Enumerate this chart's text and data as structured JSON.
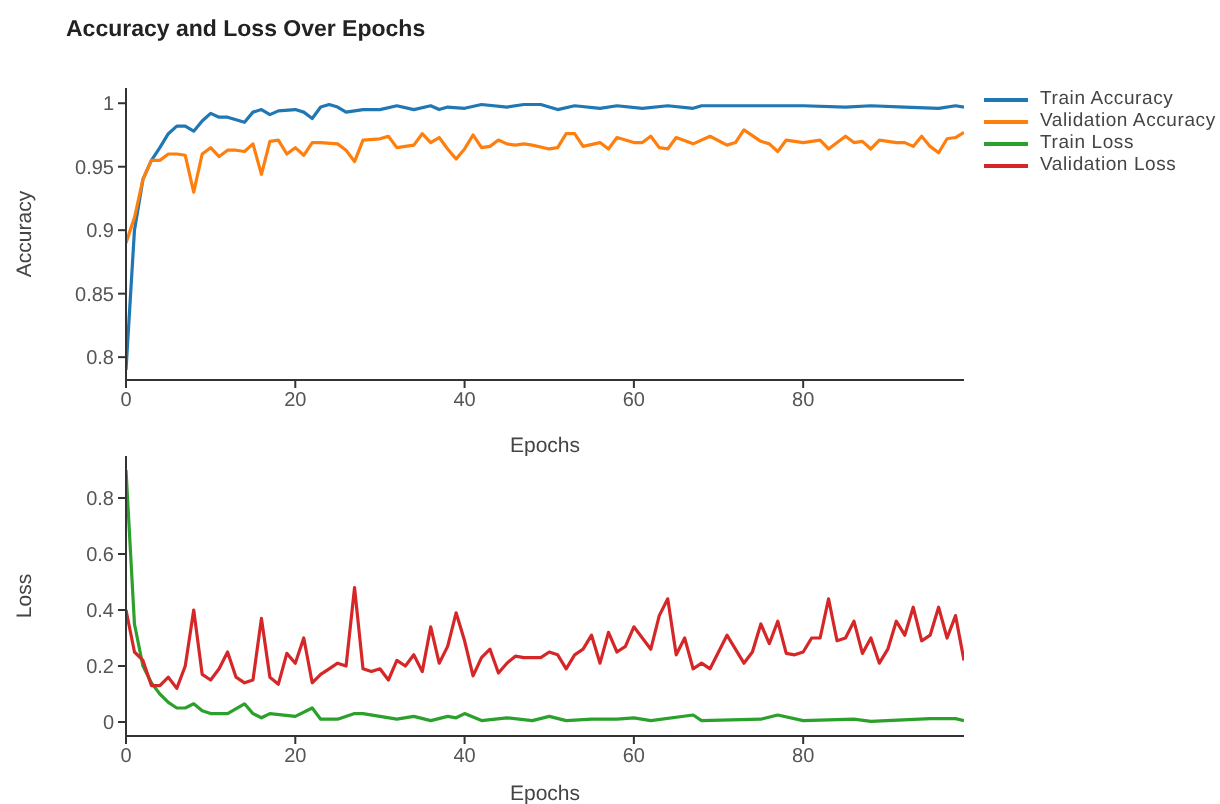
{
  "chart_data": [
    {
      "type": "line",
      "title": "Accuracy and Loss Over Epochs",
      "xlabel": "Epochs",
      "ylabel": "Accuracy",
      "xlim": [
        0,
        99
      ],
      "xticks": [
        0,
        20,
        40,
        60,
        80
      ],
      "ylim": [
        0.782,
        1.012
      ],
      "yticks": [
        0.8,
        0.85,
        0.9,
        0.95,
        1
      ],
      "legend": "right",
      "marker": "none",
      "line_style": "solid",
      "series": [
        {
          "name": "Train Accuracy",
          "color": "#1f77b4",
          "x": [
            0,
            1,
            2,
            3,
            4,
            5,
            6,
            7,
            8,
            9,
            10,
            11,
            12,
            14,
            15,
            16,
            17,
            18,
            20,
            21,
            22,
            23,
            24,
            25,
            26,
            28,
            30,
            32,
            34,
            36,
            37,
            38,
            40,
            42,
            45,
            47,
            49,
            51,
            53,
            56,
            58,
            61,
            64,
            67,
            68,
            75,
            80,
            85,
            88,
            92,
            96,
            98,
            99
          ],
          "values": [
            0.79,
            0.9,
            0.94,
            0.955,
            0.965,
            0.976,
            0.982,
            0.982,
            0.978,
            0.986,
            0.992,
            0.989,
            0.989,
            0.985,
            0.993,
            0.995,
            0.991,
            0.994,
            0.995,
            0.993,
            0.988,
            0.997,
            0.999,
            0.997,
            0.993,
            0.995,
            0.995,
            0.998,
            0.995,
            0.998,
            0.995,
            0.997,
            0.996,
            0.999,
            0.997,
            0.999,
            0.999,
            0.995,
            0.998,
            0.996,
            0.998,
            0.996,
            0.998,
            0.996,
            0.998,
            0.998,
            0.998,
            0.997,
            0.998,
            0.997,
            0.996,
            0.998,
            0.997
          ]
        },
        {
          "name": "Validation Accuracy",
          "color": "#ff7f0e",
          "x": [
            0,
            1,
            2,
            3,
            4,
            5,
            6,
            7,
            8,
            9,
            10,
            11,
            12,
            13,
            14,
            15,
            16,
            17,
            18,
            19,
            20,
            21,
            22,
            23,
            25,
            26,
            27,
            28,
            30,
            31,
            32,
            34,
            35,
            36,
            37,
            38,
            39,
            40,
            41,
            42,
            43,
            44,
            45,
            46,
            47,
            48,
            50,
            51,
            52,
            53,
            54,
            56,
            57,
            58,
            60,
            61,
            62,
            63,
            64,
            65,
            67,
            69,
            71,
            72,
            73,
            75,
            76,
            77,
            78,
            80,
            82,
            83,
            85,
            86,
            87,
            88,
            89,
            91,
            92,
            93,
            94,
            95,
            96,
            97,
            98,
            99
          ],
          "values": [
            0.89,
            0.91,
            0.94,
            0.955,
            0.955,
            0.96,
            0.96,
            0.959,
            0.93,
            0.96,
            0.965,
            0.958,
            0.963,
            0.963,
            0.962,
            0.968,
            0.944,
            0.97,
            0.971,
            0.96,
            0.965,
            0.959,
            0.969,
            0.969,
            0.968,
            0.963,
            0.954,
            0.971,
            0.972,
            0.974,
            0.965,
            0.967,
            0.976,
            0.969,
            0.973,
            0.964,
            0.956,
            0.964,
            0.975,
            0.965,
            0.966,
            0.971,
            0.968,
            0.967,
            0.968,
            0.967,
            0.964,
            0.965,
            0.976,
            0.976,
            0.966,
            0.969,
            0.964,
            0.973,
            0.969,
            0.969,
            0.974,
            0.965,
            0.964,
            0.973,
            0.968,
            0.974,
            0.967,
            0.969,
            0.979,
            0.97,
            0.968,
            0.962,
            0.971,
            0.969,
            0.971,
            0.964,
            0.974,
            0.969,
            0.97,
            0.964,
            0.971,
            0.969,
            0.969,
            0.966,
            0.974,
            0.966,
            0.961,
            0.972,
            0.973,
            0.977
          ]
        }
      ]
    },
    {
      "type": "line",
      "xlabel": "Epochs",
      "ylabel": "Loss",
      "xlim": [
        0,
        99
      ],
      "xticks": [
        0,
        20,
        40,
        60,
        80
      ],
      "ylim": [
        -0.05,
        0.95
      ],
      "yticks": [
        0,
        0.2,
        0.4,
        0.6,
        0.8
      ],
      "legend": "right",
      "marker": "none",
      "line_style": "solid",
      "series": [
        {
          "name": "Train Loss",
          "color": "#2ca02c",
          "x": [
            0,
            1,
            2,
            3,
            4,
            5,
            6,
            7,
            8,
            9,
            10,
            12,
            14,
            15,
            16,
            17,
            20,
            22,
            23,
            25,
            27,
            28,
            30,
            32,
            34,
            36,
            38,
            39,
            40,
            42,
            45,
            48,
            50,
            52,
            55,
            58,
            60,
            62,
            67,
            68,
            75,
            77,
            80,
            86,
            88,
            95,
            98,
            99
          ],
          "values": [
            0.9,
            0.35,
            0.2,
            0.14,
            0.1,
            0.07,
            0.05,
            0.05,
            0.065,
            0.04,
            0.03,
            0.03,
            0.065,
            0.03,
            0.015,
            0.03,
            0.02,
            0.05,
            0.01,
            0.01,
            0.03,
            0.03,
            0.02,
            0.01,
            0.02,
            0.005,
            0.02,
            0.015,
            0.03,
            0.005,
            0.015,
            0.005,
            0.02,
            0.005,
            0.01,
            0.01,
            0.015,
            0.005,
            0.025,
            0.005,
            0.01,
            0.025,
            0.005,
            0.01,
            0.002,
            0.012,
            0.012,
            0.005
          ]
        },
        {
          "name": "Validation Loss",
          "color": "#d62728",
          "x": [
            0,
            1,
            2,
            3,
            4,
            5,
            6,
            7,
            8,
            9,
            10,
            11,
            12,
            13,
            14,
            15,
            16,
            17,
            18,
            19,
            20,
            21,
            22,
            23,
            24,
            25,
            26,
            27,
            28,
            29,
            30,
            31,
            32,
            33,
            34,
            35,
            36,
            37,
            38,
            39,
            40,
            41,
            42,
            43,
            44,
            45,
            46,
            47,
            48,
            49,
            50,
            51,
            52,
            53,
            54,
            55,
            56,
            57,
            58,
            59,
            60,
            61,
            62,
            63,
            64,
            65,
            66,
            67,
            68,
            69,
            70,
            71,
            72,
            73,
            74,
            75,
            76,
            77,
            78,
            79,
            80,
            81,
            82,
            83,
            84,
            85,
            86,
            87,
            88,
            89,
            90,
            91,
            92,
            93,
            94,
            95,
            96,
            97,
            98,
            99
          ],
          "values": [
            0.4,
            0.25,
            0.22,
            0.13,
            0.13,
            0.16,
            0.12,
            0.2,
            0.4,
            0.17,
            0.15,
            0.19,
            0.25,
            0.16,
            0.14,
            0.15,
            0.37,
            0.16,
            0.135,
            0.245,
            0.21,
            0.3,
            0.14,
            0.17,
            0.19,
            0.21,
            0.2,
            0.48,
            0.19,
            0.18,
            0.19,
            0.15,
            0.22,
            0.2,
            0.24,
            0.18,
            0.34,
            0.21,
            0.27,
            0.39,
            0.29,
            0.165,
            0.23,
            0.26,
            0.175,
            0.21,
            0.235,
            0.23,
            0.23,
            0.23,
            0.25,
            0.24,
            0.19,
            0.24,
            0.26,
            0.31,
            0.21,
            0.32,
            0.25,
            0.27,
            0.34,
            0.3,
            0.26,
            0.38,
            0.44,
            0.24,
            0.3,
            0.19,
            0.21,
            0.19,
            0.25,
            0.31,
            0.26,
            0.21,
            0.25,
            0.35,
            0.28,
            0.36,
            0.245,
            0.24,
            0.25,
            0.3,
            0.3,
            0.44,
            0.29,
            0.3,
            0.36,
            0.245,
            0.3,
            0.21,
            0.26,
            0.36,
            0.31,
            0.41,
            0.29,
            0.31,
            0.41,
            0.3,
            0.38,
            0.22
          ]
        }
      ]
    }
  ]
}
